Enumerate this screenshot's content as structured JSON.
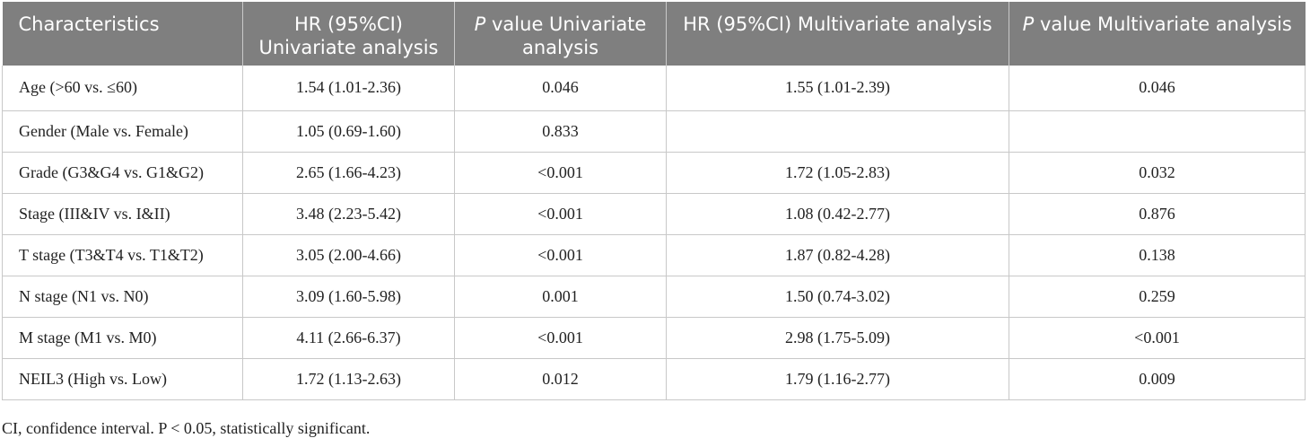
{
  "table": {
    "headers": [
      {
        "main": "Characteristics",
        "italic": "",
        "rest": ""
      },
      {
        "main": "HR (95%CI) Univariate analysis",
        "italic": "",
        "rest": ""
      },
      {
        "main": "",
        "italic": "P",
        "rest": " value Univariate analysis"
      },
      {
        "main": "HR (95%CI) Multivariate analysis",
        "italic": "",
        "rest": ""
      },
      {
        "main": "",
        "italic": "P",
        "rest": " value Multivariate analysis"
      }
    ],
    "rows": [
      [
        "Age (>60 vs. ≤60)",
        "1.54 (1.01-2.36)",
        "0.046",
        "1.55 (1.01-2.39)",
        "0.046"
      ],
      [
        "Gender (Male vs. Female)",
        "1.05 (0.69-1.60)",
        "0.833",
        "",
        ""
      ],
      [
        "Grade (G3&G4 vs. G1&G2)",
        "2.65 (1.66-4.23)",
        "<0.001",
        "1.72 (1.05-2.83)",
        "0.032"
      ],
      [
        "Stage (III&IV vs. I&II)",
        "3.48 (2.23-5.42)",
        "<0.001",
        "1.08 (0.42-2.77)",
        "0.876"
      ],
      [
        "T stage (T3&T4 vs. T1&T2)",
        "3.05 (2.00-4.66)",
        "<0.001",
        "1.87 (0.82-4.28)",
        "0.138"
      ],
      [
        "N stage (N1 vs. N0)",
        "3.09 (1.60-5.98)",
        "0.001",
        "1.50 (0.74-3.02)",
        "0.259"
      ],
      [
        "M stage (M1 vs. M0)",
        "4.11 (2.66-6.37)",
        "<0.001",
        "2.98 (1.75-5.09)",
        "<0.001"
      ],
      [
        "NEIL3 (High vs. Low)",
        "1.72 (1.13-2.63)",
        "0.012",
        "1.79 (1.16-2.77)",
        "0.009"
      ]
    ]
  },
  "footnote": "CI, confidence interval. P < 0.05, statistically significant.",
  "colors": {
    "header_bg": "#7f7f7f",
    "header_text": "#ffffff",
    "grid": "#c8c8c8"
  }
}
